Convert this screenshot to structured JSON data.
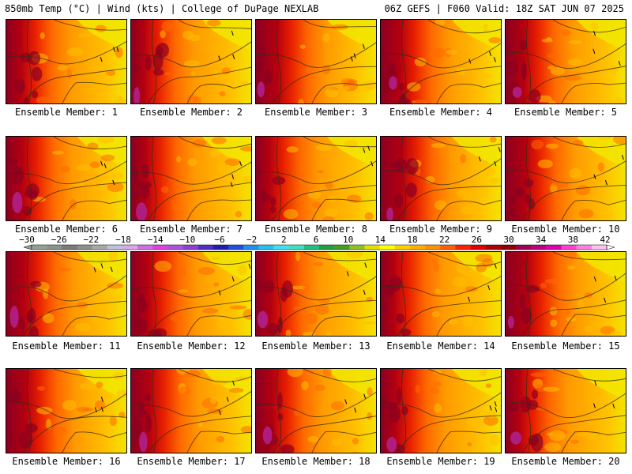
{
  "header": {
    "left": "850mb Temp (°C) | Wind (kts) | College of DuPage NEXLAB",
    "right": "06Z GEFS | F060 Valid: 18Z SAT JUN 07 2025"
  },
  "panels": [
    {
      "label": "Ensemble Member: 1"
    },
    {
      "label": "Ensemble Member: 2"
    },
    {
      "label": "Ensemble Member: 3"
    },
    {
      "label": "Ensemble Member: 4"
    },
    {
      "label": "Ensemble Member: 5"
    },
    {
      "label": "Ensemble Member: 6"
    },
    {
      "label": "Ensemble Member: 7"
    },
    {
      "label": "Ensemble Member: 8"
    },
    {
      "label": "Ensemble Member: 9"
    },
    {
      "label": "Ensemble Member: 10"
    },
    {
      "label": "Ensemble Member: 11"
    },
    {
      "label": "Ensemble Member: 12"
    },
    {
      "label": "Ensemble Member: 13"
    },
    {
      "label": "Ensemble Member: 14"
    },
    {
      "label": "Ensemble Member: 15"
    },
    {
      "label": "Ensemble Member: 16"
    },
    {
      "label": "Ensemble Member: 17"
    },
    {
      "label": "Ensemble Member: 18"
    },
    {
      "label": "Ensemble Member: 19"
    },
    {
      "label": "Ensemble Member: 20"
    }
  ],
  "colorbar": {
    "labels": [
      "-30",
      "-26",
      "-22",
      "-18",
      "-14",
      "-10",
      "-6",
      "-2",
      "2",
      "6",
      "10",
      "14",
      "18",
      "22",
      "26",
      "30",
      "34",
      "38",
      "42"
    ],
    "colors": [
      "#95a095",
      "#8a948a",
      "#7a7a7a",
      "#8e8e8e",
      "#a8a8a8",
      "#c0c0d8",
      "#d8a8e8",
      "#d070e0",
      "#e040e0",
      "#b050e0",
      "#9040d0",
      "#5030c0",
      "#2020b0",
      "#2050e0",
      "#2090f0",
      "#20c0f0",
      "#40e0f0",
      "#40e0c0",
      "#20c080",
      "#20a040",
      "#40a020",
      "#90c020",
      "#e0e000",
      "#ffff00",
      "#ffd000",
      "#ffb000",
      "#ff9000",
      "#ff6000",
      "#ff2000",
      "#e00000",
      "#b00000",
      "#900000",
      "#a00050",
      "#c00080",
      "#e000b0",
      "#ff40d0",
      "#ff80e0",
      "#ffc0f0"
    ]
  },
  "map_colors": {
    "yellow": "#f2e600",
    "gold": "#ffc000",
    "orange": "#ff9a00",
    "dark_orange": "#ff6a00",
    "red": "#e82000",
    "dark_red": "#b30010",
    "maroon": "#8c0020",
    "magenta": "#b0208a"
  }
}
